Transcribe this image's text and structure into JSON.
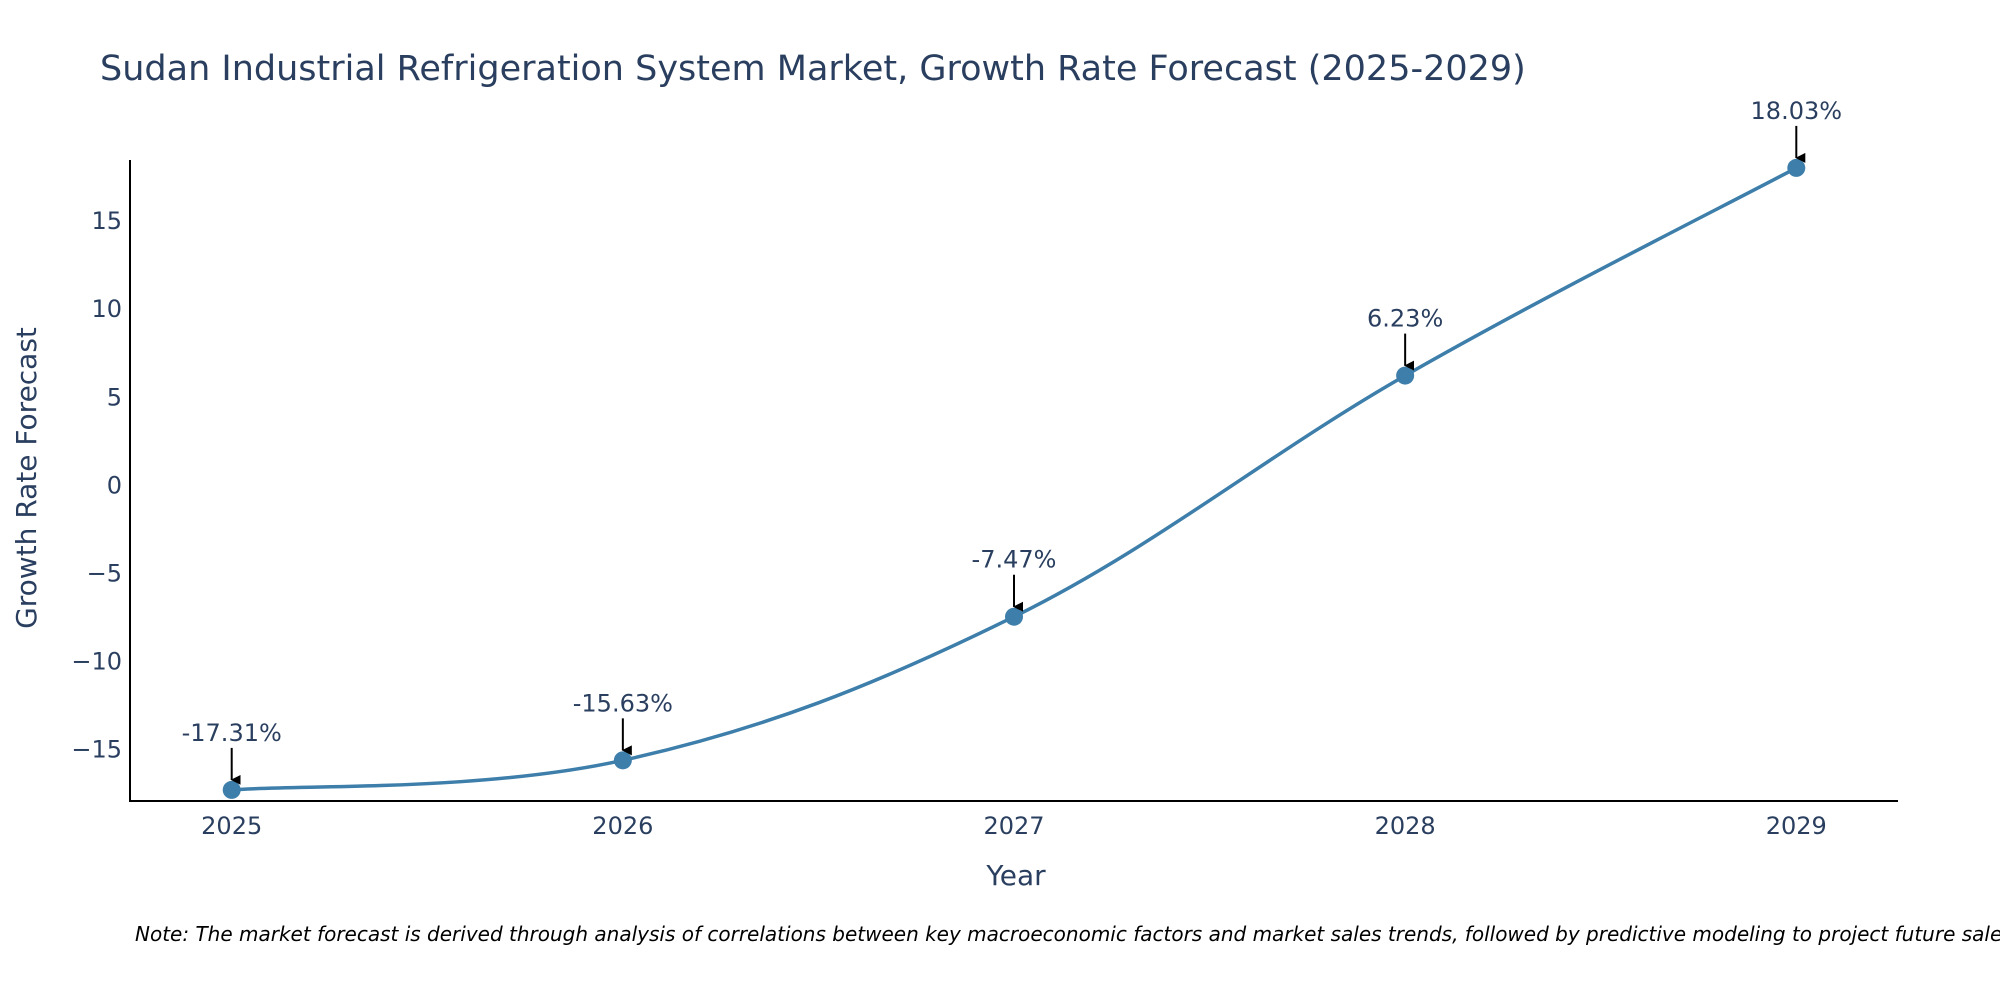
{
  "chart_data": {
    "type": "line",
    "title": "Sudan Industrial Refrigeration System Market, Growth Rate Forecast (2025-2029)",
    "xlabel": "Year",
    "ylabel": "Growth Rate Forecast",
    "categories": [
      "2025",
      "2026",
      "2027",
      "2028",
      "2029"
    ],
    "values": [
      -17.31,
      -15.63,
      -7.47,
      6.23,
      18.03
    ],
    "data_labels": [
      "-17.31%",
      "-15.63%",
      "-7.47%",
      "6.23%",
      "18.03%"
    ],
    "y_ticks": [
      -15,
      -10,
      -5,
      0,
      5,
      10,
      15
    ],
    "y_tick_labels": [
      "−15",
      "−10",
      "−5",
      "0",
      "5",
      "10",
      "15"
    ],
    "ylim": [
      -17.94,
      18.48
    ],
    "xlim": [
      2024.74,
      2029.26
    ],
    "grid": false,
    "line_color": "#3d7eaa",
    "marker_color": "#3d7eaa",
    "arrow_color": "#000000"
  },
  "note": "Note: The market forecast is derived through analysis of correlations between key macroeconomic factors and market sales trends, followed by predictive modeling to project future sales."
}
